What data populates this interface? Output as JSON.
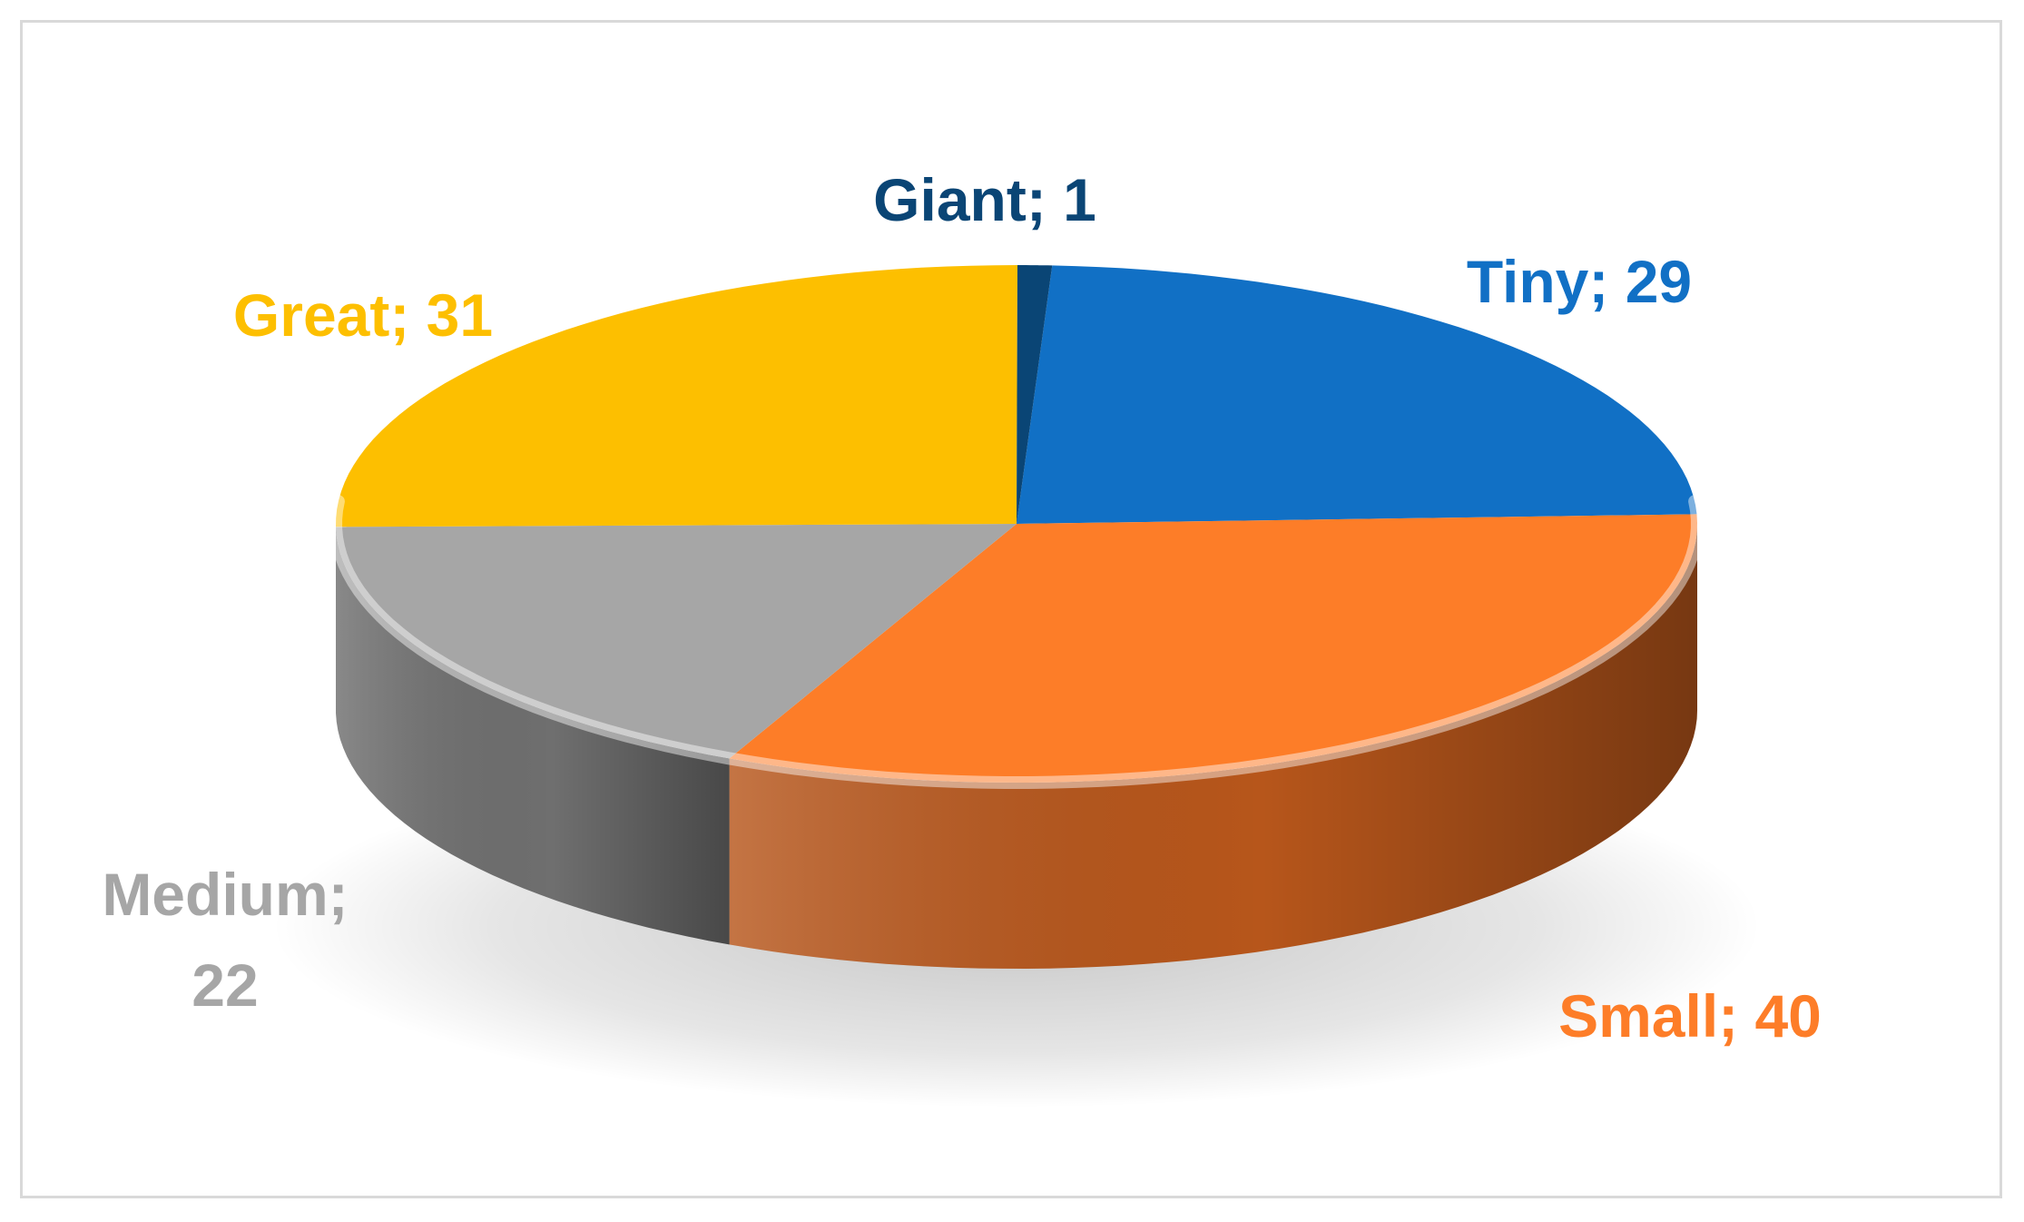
{
  "chart_data": {
    "type": "pie",
    "style": "3d",
    "slices": [
      {
        "label": "Tiny",
        "value": 29,
        "display": "Tiny; 29",
        "color": "#1170c5",
        "dark": "#0c4f8c"
      },
      {
        "label": "Small",
        "value": 40,
        "display": "Small; 40",
        "color": "#fd7d28",
        "dark": "#b7561b"
      },
      {
        "label": "Medium",
        "value": 22,
        "display_lines": [
          "Medium;",
          "22"
        ],
        "color": "#a6a6a6",
        "dark": "#6f6f6f"
      },
      {
        "label": "Great",
        "value": 31,
        "display": "Great; 31",
        "color": "#fdbf00",
        "dark": "#b58900"
      },
      {
        "label": "Giant",
        "value": 1,
        "display": "Giant; 1",
        "color": "#0a4575",
        "dark": "#062b4a"
      }
    ],
    "label_colors": {
      "Tiny": "#1170c5",
      "Small": "#fd7d28",
      "Medium": "#a6a6a6",
      "Great": "#fdbf00",
      "Giant": "#0a4575"
    },
    "legend": "none",
    "title": ""
  }
}
